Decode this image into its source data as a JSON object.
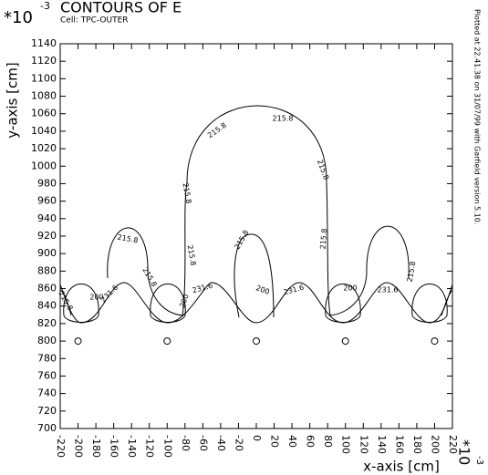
{
  "chart_data": {
    "type": "contour",
    "title": "CONTOURS OF E",
    "subtitle": "Cell: TPC-OUTER",
    "x_label": "x-axis [cm]",
    "y_label": "y-axis [cm]",
    "x_scale": {
      "base": "*10",
      "exponent": "-3"
    },
    "y_scale": {
      "base": "*10",
      "exponent": "-3"
    },
    "footer": "Plotted at 22.41.38 on 31/07/99 with Garfield version 5.10.",
    "xlim": [
      -220,
      220
    ],
    "ylim": [
      700,
      1140
    ],
    "xticks": [
      -220,
      -200,
      -180,
      -160,
      -140,
      -120,
      -100,
      -80,
      -60,
      -40,
      -20,
      0,
      20,
      40,
      60,
      80,
      100,
      120,
      140,
      160,
      180,
      200,
      220
    ],
    "yticks": [
      700,
      720,
      740,
      760,
      780,
      800,
      820,
      840,
      860,
      880,
      900,
      920,
      940,
      960,
      980,
      1000,
      1020,
      1040,
      1060,
      1080,
      1100,
      1120,
      1140
    ],
    "contours": [
      {
        "level": 215.8
      },
      {
        "level": 231.6
      },
      {
        "level": 200
      }
    ],
    "wires": {
      "x": [
        -200,
        -100,
        0,
        100,
        200
      ],
      "y": [
        800,
        800,
        800,
        800,
        800
      ]
    }
  }
}
